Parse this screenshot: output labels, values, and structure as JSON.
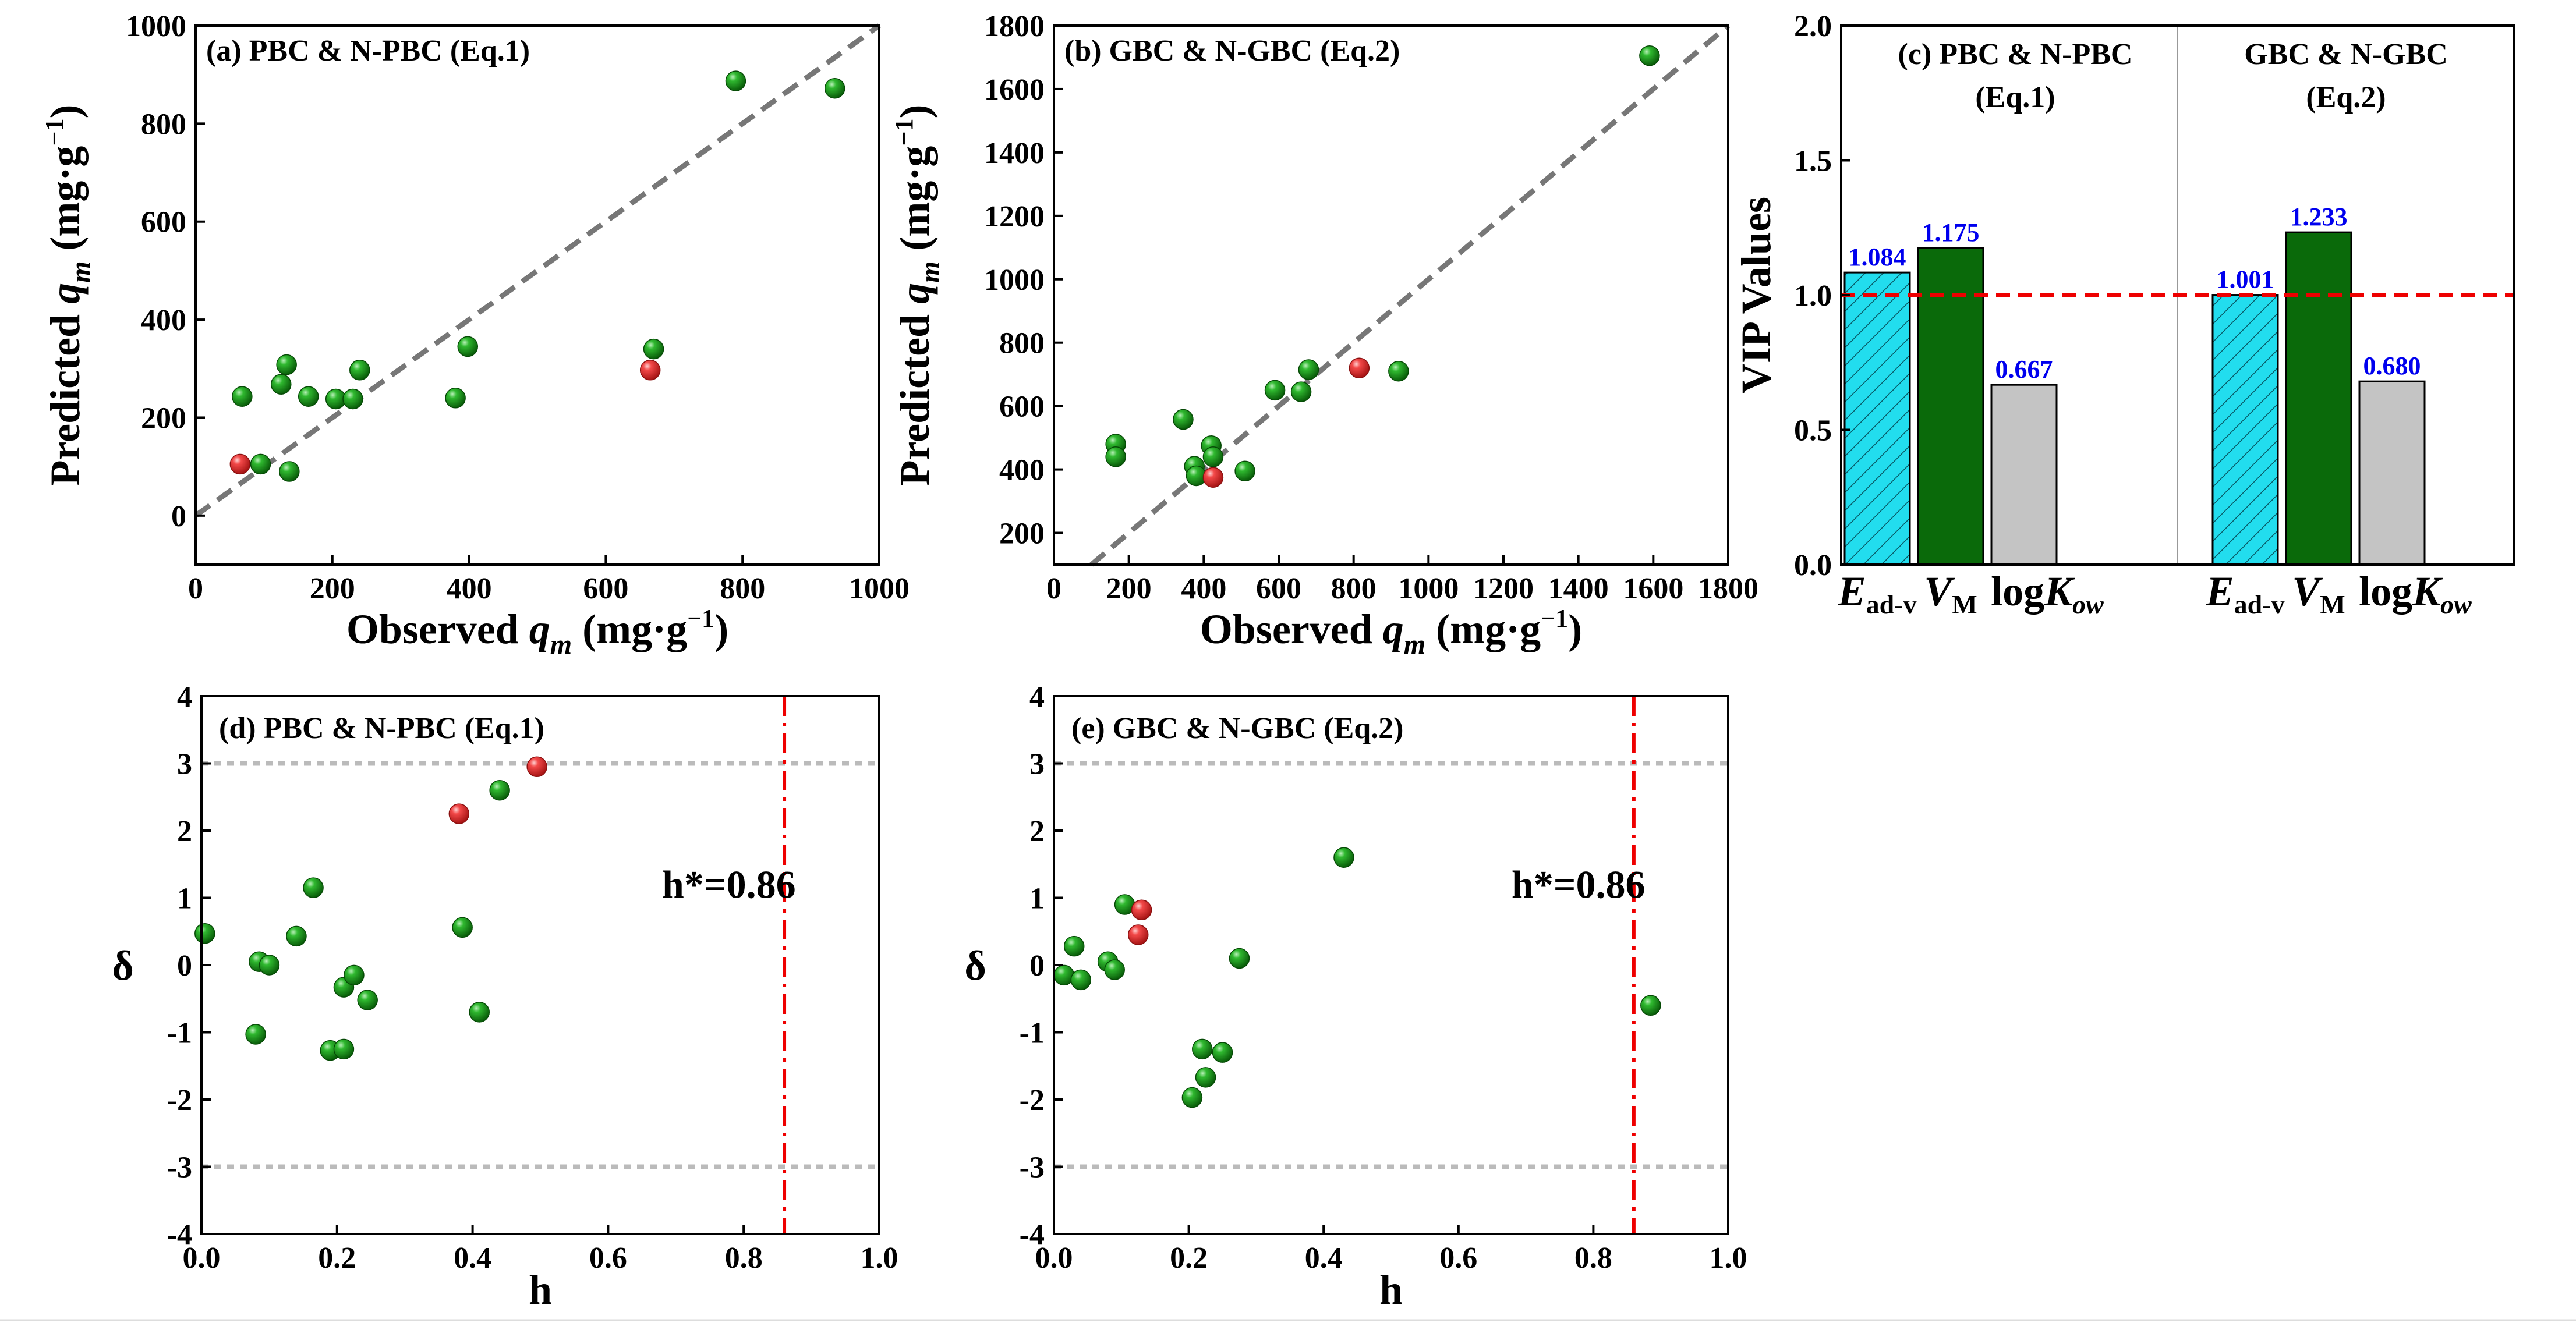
{
  "colors": {
    "green": "#119911",
    "red": "#ee3333",
    "cyan": "#22ddee",
    "dark_green": "#0a6a0a",
    "gray": "#c4c4c4",
    "limit_red": "#ee0000",
    "dash_gray": "#777777",
    "value_blue": "#0000ee"
  },
  "chart_data": [
    {
      "id": "a",
      "type": "scatter",
      "title": "(a)  PBC & N-PBC (Eq.1)",
      "xlabel_prefix": "Observed ",
      "xlabel_var": "q",
      "xlabel_sub": "m",
      "xlabel_unit": " (mg·g",
      "xlabel_exp": "−1",
      "xlabel_close": ")",
      "ylabel_prefix": "Predicted ",
      "ylabel_var": "q",
      "ylabel_sub": "m",
      "ylabel_unit": " (mg·g",
      "ylabel_exp": "−1",
      "ylabel_close": ")",
      "xlim": [
        0,
        1000
      ],
      "ylim": [
        -100,
        1000
      ],
      "xticks": [
        0,
        200,
        400,
        600,
        800,
        1000
      ],
      "yticks": [
        0,
        200,
        400,
        600,
        800,
        1000
      ],
      "diagonal": true,
      "series": [
        {
          "name": "green",
          "points": [
            [
              68,
              243
            ],
            [
              95,
              105
            ],
            [
              125,
              268
            ],
            [
              133,
              308
            ],
            [
              137,
              90
            ],
            [
              165,
              243
            ],
            [
              205,
              238
            ],
            [
              230,
              238
            ],
            [
              240,
              297
            ],
            [
              380,
              240
            ],
            [
              398,
              345
            ],
            [
              670,
              340
            ],
            [
              790,
              887
            ],
            [
              935,
              872
            ]
          ]
        },
        {
          "name": "red",
          "points": [
            [
              65,
              105
            ],
            [
              665,
              297
            ]
          ]
        }
      ]
    },
    {
      "id": "b",
      "type": "scatter",
      "title": "(b)  GBC  &  N-GBC (Eq.2)",
      "xlabel_prefix": "Observed ",
      "xlabel_var": "q",
      "xlabel_sub": "m",
      "xlabel_unit": " (mg·g",
      "xlabel_exp": "−1",
      "xlabel_close": ")",
      "ylabel_prefix": "Predicted ",
      "ylabel_var": "q",
      "ylabel_sub": "m",
      "ylabel_unit": " (mg·g",
      "ylabel_exp": "−1",
      "ylabel_close": ")",
      "xlim": [
        0,
        1800
      ],
      "ylim": [
        100,
        1800
      ],
      "xticks": [
        0,
        200,
        400,
        600,
        800,
        1000,
        1200,
        1400,
        1600,
        1800
      ],
      "yticks": [
        200,
        400,
        600,
        800,
        1000,
        1200,
        1400,
        1600,
        1800
      ],
      "diagonal": true,
      "series": [
        {
          "name": "green",
          "points": [
            [
              165,
              480
            ],
            [
              165,
              440
            ],
            [
              345,
              558
            ],
            [
              375,
              410
            ],
            [
              380,
              380
            ],
            [
              420,
              475
            ],
            [
              425,
              440
            ],
            [
              510,
              395
            ],
            [
              590,
              650
            ],
            [
              660,
              645
            ],
            [
              680,
              715
            ],
            [
              920,
              710
            ],
            [
              1590,
              1705
            ]
          ]
        },
        {
          "name": "red",
          "points": [
            [
              425,
              375
            ],
            [
              815,
              720
            ]
          ]
        }
      ]
    },
    {
      "id": "c",
      "type": "bar",
      "ylabel": "VIP Values",
      "ylim": [
        0.0,
        2.0
      ],
      "yticks": [
        "0.0",
        "0.5",
        "1.0",
        "1.5",
        "2.0"
      ],
      "threshold": 1.0,
      "groups": [
        {
          "title_line1": "(c) PBC & N-PBC",
          "title_line2": "(Eq.1)",
          "values": [
            1.084,
            1.175,
            0.667
          ],
          "labels": [
            "1.084",
            "1.175",
            "0.667"
          ]
        },
        {
          "title_line1": "GBC  &  N-GBC",
          "title_line2": "(Eq.2)",
          "values": [
            1.001,
            1.233,
            0.68
          ],
          "labels": [
            "1.001",
            "1.233",
            "0.680"
          ]
        }
      ],
      "categories": [
        {
          "main": "E",
          "sub": "ad-v"
        },
        {
          "main": "V",
          "sub": "M"
        },
        {
          "main": "log",
          "italic": "K",
          "sub": "ow"
        }
      ]
    },
    {
      "id": "d",
      "type": "scatter",
      "title": "(d)  PBC & N-PBC (Eq.1)",
      "xlabel": "h",
      "ylabel": "δ",
      "xlim": [
        0.0,
        1.0
      ],
      "ylim": [
        -4,
        4
      ],
      "xticks": [
        "0.0",
        "0.2",
        "0.4",
        "0.6",
        "0.8",
        "1.0"
      ],
      "yticks": [
        "-4",
        "-3",
        "-2",
        "-1",
        "0",
        "1",
        "2",
        "3",
        "4"
      ],
      "h_limits": [
        3,
        -3
      ],
      "h_star": 0.86,
      "h_star_label": "h*=0.86",
      "series": [
        {
          "name": "green",
          "points": [
            [
              0.005,
              0.47
            ],
            [
              0.085,
              0.05
            ],
            [
              0.1,
              0.0
            ],
            [
              0.08,
              -1.03
            ],
            [
              0.14,
              0.43
            ],
            [
              0.165,
              1.15
            ],
            [
              0.19,
              -1.27
            ],
            [
              0.21,
              -1.25
            ],
            [
              0.21,
              -0.33
            ],
            [
              0.225,
              -0.15
            ],
            [
              0.245,
              -0.52
            ],
            [
              0.385,
              0.56
            ],
            [
              0.41,
              -0.7
            ],
            [
              0.44,
              2.6
            ]
          ]
        },
        {
          "name": "red",
          "points": [
            [
              0.38,
              2.25
            ],
            [
              0.495,
              2.95
            ]
          ]
        }
      ]
    },
    {
      "id": "e",
      "type": "scatter",
      "title": "(e)  GBC  &  N-GBC (Eq.2)",
      "xlabel": "h",
      "ylabel": "δ",
      "xlim": [
        0.0,
        1.0
      ],
      "ylim": [
        -4,
        4
      ],
      "xticks": [
        "0.0",
        "0.2",
        "0.4",
        "0.6",
        "0.8",
        "1.0"
      ],
      "yticks": [
        "-4",
        "-3",
        "-2",
        "-1",
        "0",
        "1",
        "2",
        "3",
        "4"
      ],
      "h_limits": [
        3,
        -3
      ],
      "h_star": 0.86,
      "h_star_label": "h*=0.86",
      "series": [
        {
          "name": "green",
          "points": [
            [
              0.015,
              -0.15
            ],
            [
              0.03,
              0.28
            ],
            [
              0.04,
              -0.22
            ],
            [
              0.08,
              0.05
            ],
            [
              0.09,
              -0.07
            ],
            [
              0.105,
              0.9
            ],
            [
              0.205,
              -1.97
            ],
            [
              0.22,
              -1.25
            ],
            [
              0.225,
              -1.67
            ],
            [
              0.25,
              -1.3
            ],
            [
              0.275,
              0.1
            ],
            [
              0.43,
              1.6
            ],
            [
              0.885,
              -0.6
            ]
          ]
        },
        {
          "name": "red",
          "points": [
            [
              0.125,
              0.45
            ],
            [
              0.13,
              0.82
            ]
          ]
        }
      ]
    }
  ]
}
